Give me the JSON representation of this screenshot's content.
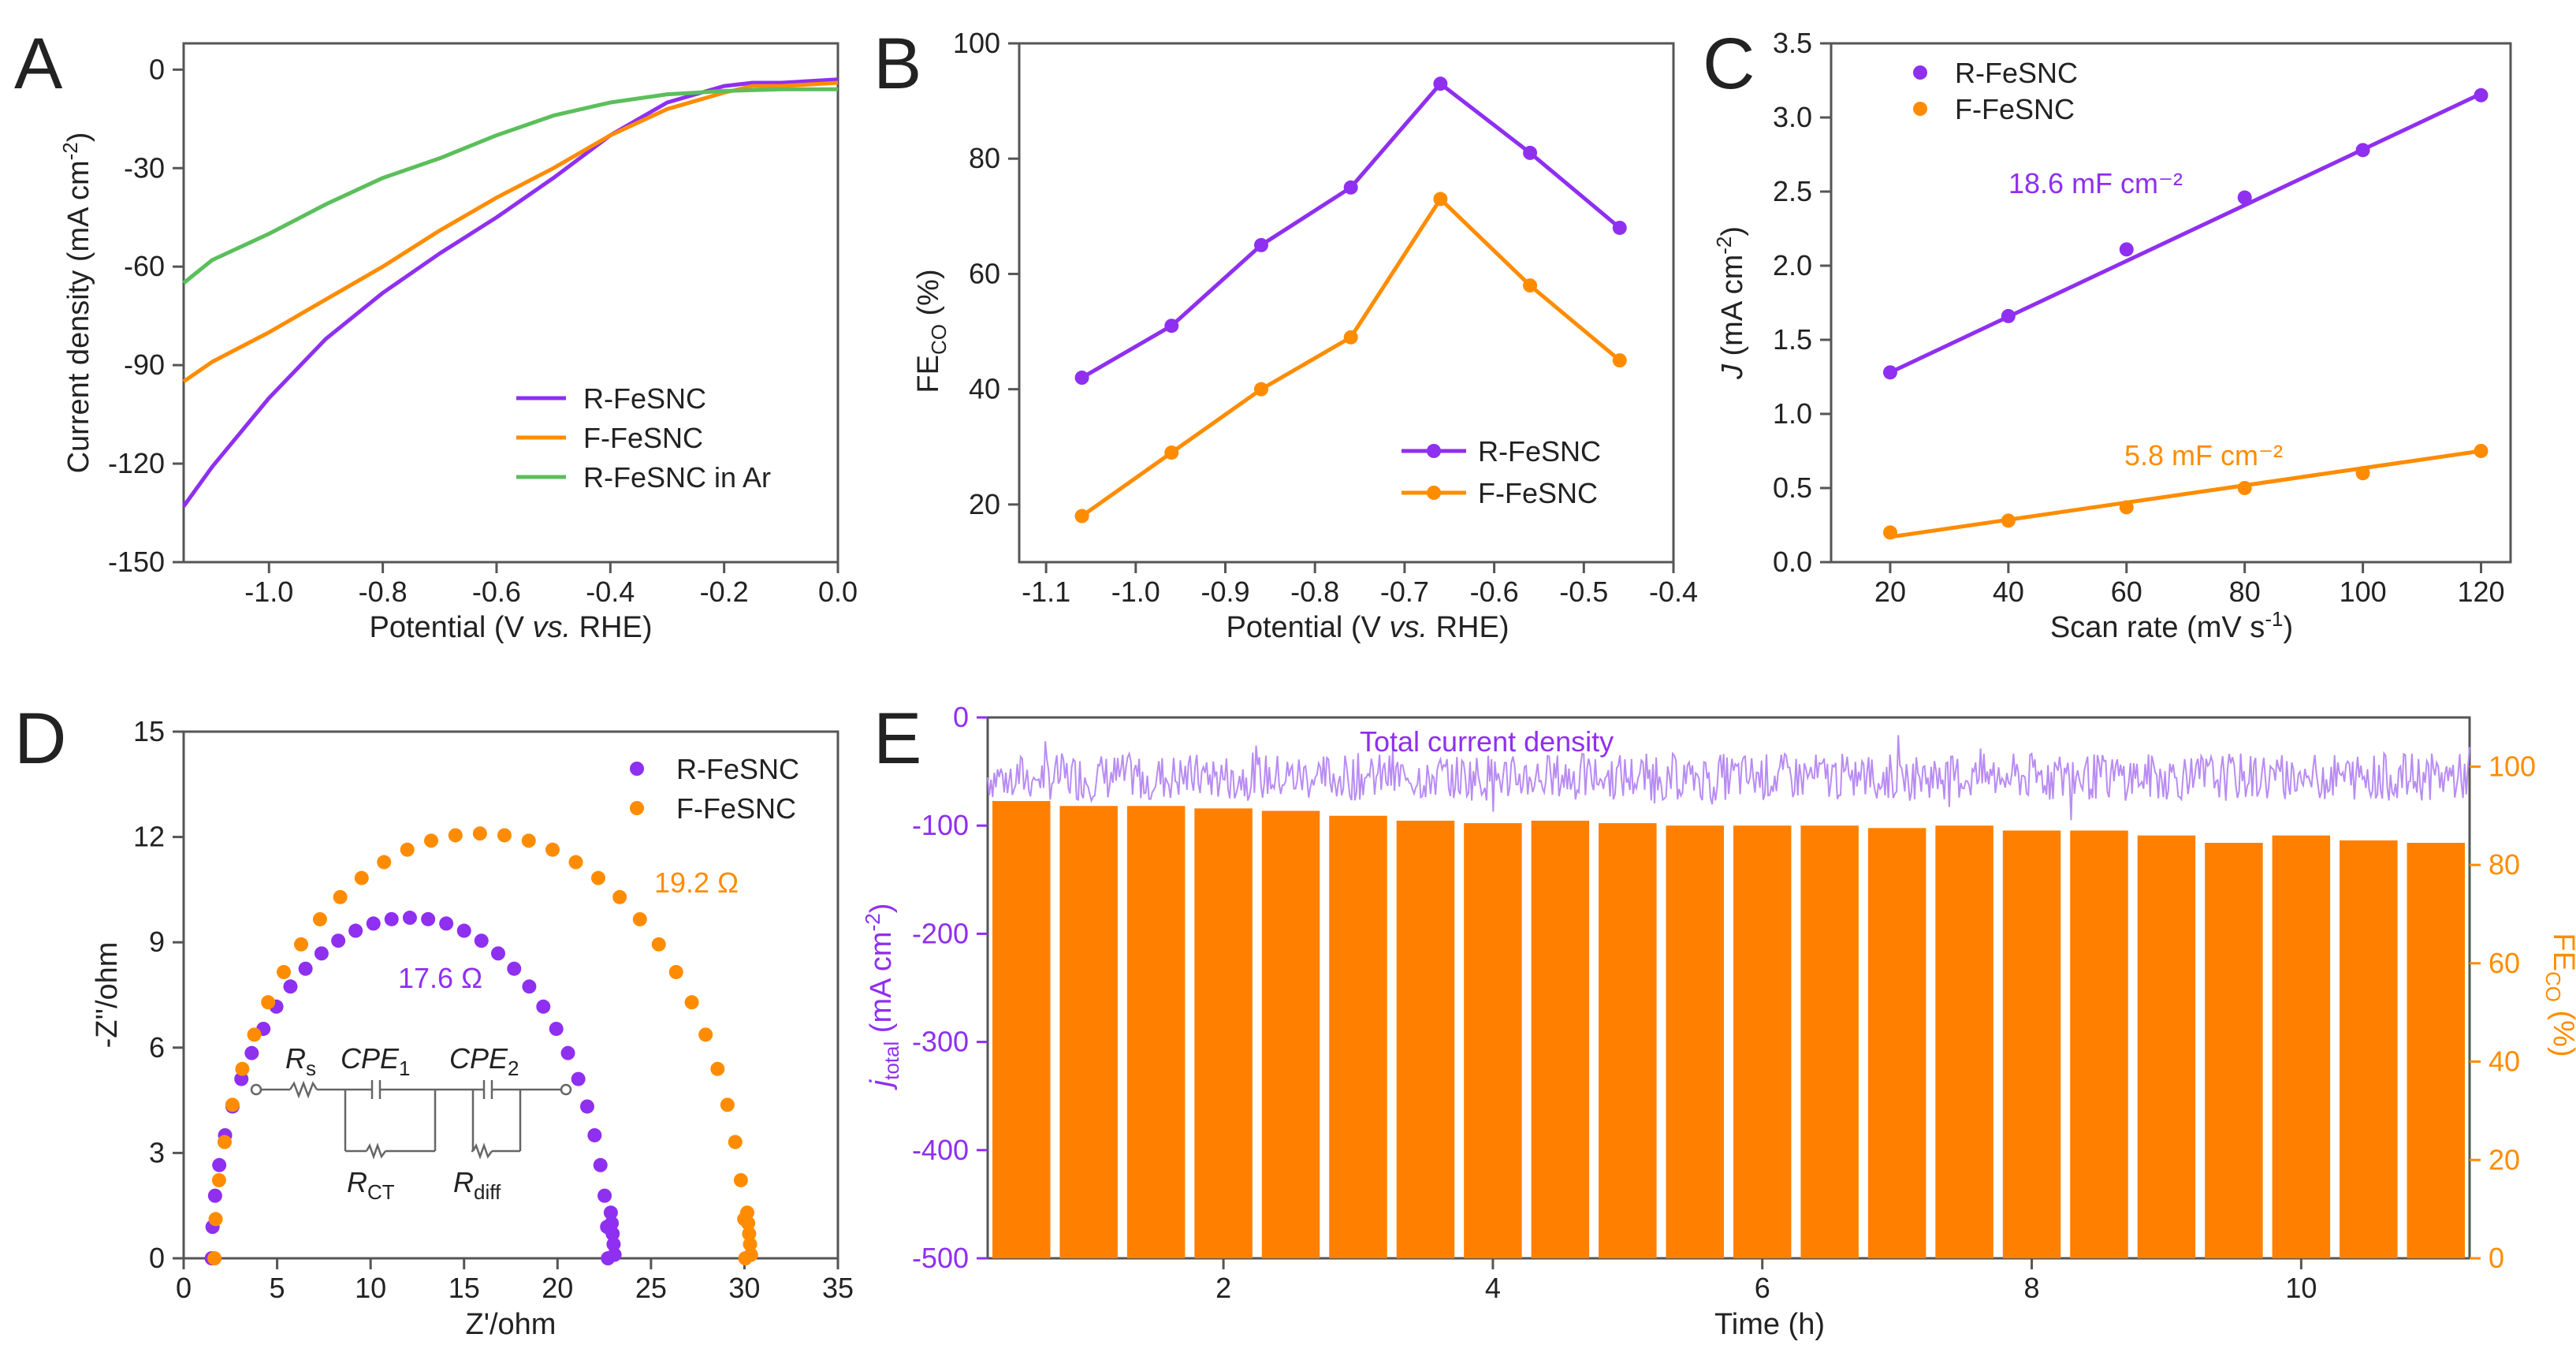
{
  "colors": {
    "purple": "#8f2ff0",
    "orange": "#ff8c00",
    "green": "#5bbf5b",
    "axis": "#555555",
    "bar": "#ff8000"
  },
  "chart_data": [
    {
      "panel": "A",
      "type": "line",
      "xlabel": "Potential (V vs. RHE)",
      "ylabel": "Current density (mA cm⁻²)",
      "xlim": [
        -1.15,
        0.0
      ],
      "ylim": [
        -150,
        8
      ],
      "xticks": [
        "-1.0",
        "-0.8",
        "-0.6",
        "-0.4",
        "-0.2",
        "0.0"
      ],
      "yticks": [
        "0",
        "-30",
        "-60",
        "-90",
        "-120",
        "-150"
      ],
      "series": [
        {
          "name": "R-FeSNC",
          "color": "#8f2ff0",
          "x": [
            -1.15,
            -1.1,
            -1.0,
            -0.9,
            -0.8,
            -0.7,
            -0.6,
            -0.5,
            -0.4,
            -0.3,
            -0.2,
            -0.15,
            -0.1,
            -0.05,
            0.0
          ],
          "y": [
            -133,
            -121,
            -100,
            -82,
            -68,
            -56,
            -45,
            -33,
            -20,
            -10,
            -5,
            -4,
            -4,
            -3.5,
            -3
          ]
        },
        {
          "name": "F-FeSNC",
          "color": "#ff8c00",
          "x": [
            -1.15,
            -1.1,
            -1.0,
            -0.9,
            -0.8,
            -0.7,
            -0.6,
            -0.5,
            -0.4,
            -0.3,
            -0.2,
            -0.15,
            -0.1,
            -0.05,
            0.0
          ],
          "y": [
            -95,
            -89,
            -80,
            -70,
            -60,
            -49,
            -39,
            -30,
            -20,
            -12,
            -7,
            -5,
            -5,
            -4.5,
            -4
          ]
        },
        {
          "name": "R-FeSNC in Ar",
          "color": "#5bbf5b",
          "x": [
            -1.15,
            -1.1,
            -1.0,
            -0.9,
            -0.8,
            -0.7,
            -0.6,
            -0.5,
            -0.4,
            -0.3,
            -0.2,
            -0.1,
            0.0
          ],
          "y": [
            -65,
            -58,
            -50,
            -41,
            -33,
            -27,
            -20,
            -14,
            -10,
            -7.5,
            -6.5,
            -6,
            -6
          ]
        }
      ],
      "legend": [
        "R-FeSNC",
        "F-FeSNC",
        "R-FeSNC in Ar"
      ]
    },
    {
      "panel": "B",
      "type": "line",
      "xlabel": "Potential (V vs. RHE)",
      "ylabel": "FE_CO (%)",
      "xlim": [
        -1.13,
        -0.4
      ],
      "ylim": [
        10,
        100
      ],
      "xticks": [
        "-1.1",
        "-1.0",
        "-0.9",
        "-0.8",
        "-0.7",
        "-0.6",
        "-0.5",
        "-0.4"
      ],
      "yticks": [
        "20",
        "40",
        "60",
        "80",
        "100"
      ],
      "x": [
        -1.06,
        -0.96,
        -0.86,
        -0.76,
        -0.66,
        -0.56,
        -0.46
      ],
      "series": [
        {
          "name": "R-FeSNC",
          "color": "#8f2ff0",
          "values": [
            42,
            51,
            65,
            75,
            93,
            81,
            68
          ]
        },
        {
          "name": "F-FeSNC",
          "color": "#ff8c00",
          "values": [
            18,
            29,
            40,
            49,
            73,
            58,
            45
          ]
        }
      ],
      "legend": [
        "R-FeSNC",
        "F-FeSNC"
      ]
    },
    {
      "panel": "C",
      "type": "scatter",
      "xlabel": "Scan rate (mV s⁻¹)",
      "ylabel": "J (mA cm⁻²)",
      "xlim": [
        10,
        125
      ],
      "ylim": [
        0,
        3.5
      ],
      "xticks": [
        "20",
        "40",
        "60",
        "80",
        "100",
        "120"
      ],
      "yticks": [
        "0.0",
        "0.5",
        "1.0",
        "1.5",
        "2.0",
        "2.5",
        "3.0",
        "3.5"
      ],
      "x": [
        20,
        40,
        60,
        80,
        100,
        120
      ],
      "series": [
        {
          "name": "R-FeSNC",
          "color": "#8f2ff0",
          "values": [
            1.28,
            1.66,
            2.11,
            2.46,
            2.78,
            3.15
          ],
          "fit": [
            1.28,
            3.16
          ]
        },
        {
          "name": "F-FeSNC",
          "color": "#ff8c00",
          "values": [
            0.2,
            0.28,
            0.37,
            0.5,
            0.6,
            0.75
          ],
          "fit": [
            0.17,
            0.75
          ]
        }
      ],
      "annotations": [
        "18.6 mF cm⁻²",
        "5.8 mF cm⁻²"
      ],
      "legend": [
        "R-FeSNC",
        "F-FeSNC"
      ]
    },
    {
      "panel": "D",
      "type": "scatter",
      "xlabel": "Z'/ohm",
      "ylabel": "-Z''/ohm",
      "xlim": [
        0,
        35
      ],
      "ylim": [
        0,
        15
      ],
      "xticks": [
        "0",
        "5",
        "10",
        "15",
        "20",
        "25",
        "30",
        "35"
      ],
      "yticks": [
        "0",
        "3",
        "6",
        "9",
        "12",
        "15"
      ],
      "series": [
        {
          "name": "R-FeSNC",
          "color": "#8f2ff0",
          "center": 12.1,
          "radius": 10.6,
          "height": 9.7,
          "x_end": 22.8
        },
        {
          "name": "F-FeSNC",
          "color": "#ff8c00",
          "center": 15.85,
          "radius": 14.2,
          "height": 12.1,
          "x_end": 30.1
        }
      ],
      "annotations": [
        "17.6 Ω",
        "19.2 Ω"
      ],
      "circuit_labels": [
        "R_s",
        "CPE_1",
        "CPE_2",
        "R_CT",
        "R_diff"
      ],
      "legend": [
        "R-FeSNC",
        "F-FeSNC"
      ]
    },
    {
      "panel": "E",
      "type": "bar",
      "xlabel": "Time (h)",
      "ylabel_left": "j_total (mA cm⁻²)",
      "ylabel_right": "FE_CO (%)",
      "xlim": [
        0.25,
        11.25
      ],
      "ylim_left": [
        -500,
        0
      ],
      "ylim_right": [
        0,
        110
      ],
      "xticks": [
        "2",
        "4",
        "6",
        "8",
        "10"
      ],
      "yticks_left": [
        "0",
        "-100",
        "-200",
        "-300",
        "-400",
        "-500"
      ],
      "yticks_right": [
        "0",
        "20",
        "40",
        "60",
        "80",
        "100"
      ],
      "bar_times": [
        0.5,
        1.0,
        1.5,
        2.0,
        2.5,
        3.0,
        3.5,
        4.0,
        4.5,
        5.0,
        5.5,
        6.0,
        6.5,
        7.0,
        7.5,
        8.0,
        8.5,
        9.0,
        9.5,
        10.0,
        10.5,
        11.0
      ],
      "fe_values": [
        93,
        92,
        92,
        91.5,
        91,
        90,
        89,
        88.5,
        89,
        88.5,
        88,
        88,
        88,
        87.5,
        88,
        87,
        87,
        86,
        84.5,
        86,
        85,
        84.5
      ],
      "current_mean": -55,
      "current_series_name": "Total current density"
    }
  ]
}
